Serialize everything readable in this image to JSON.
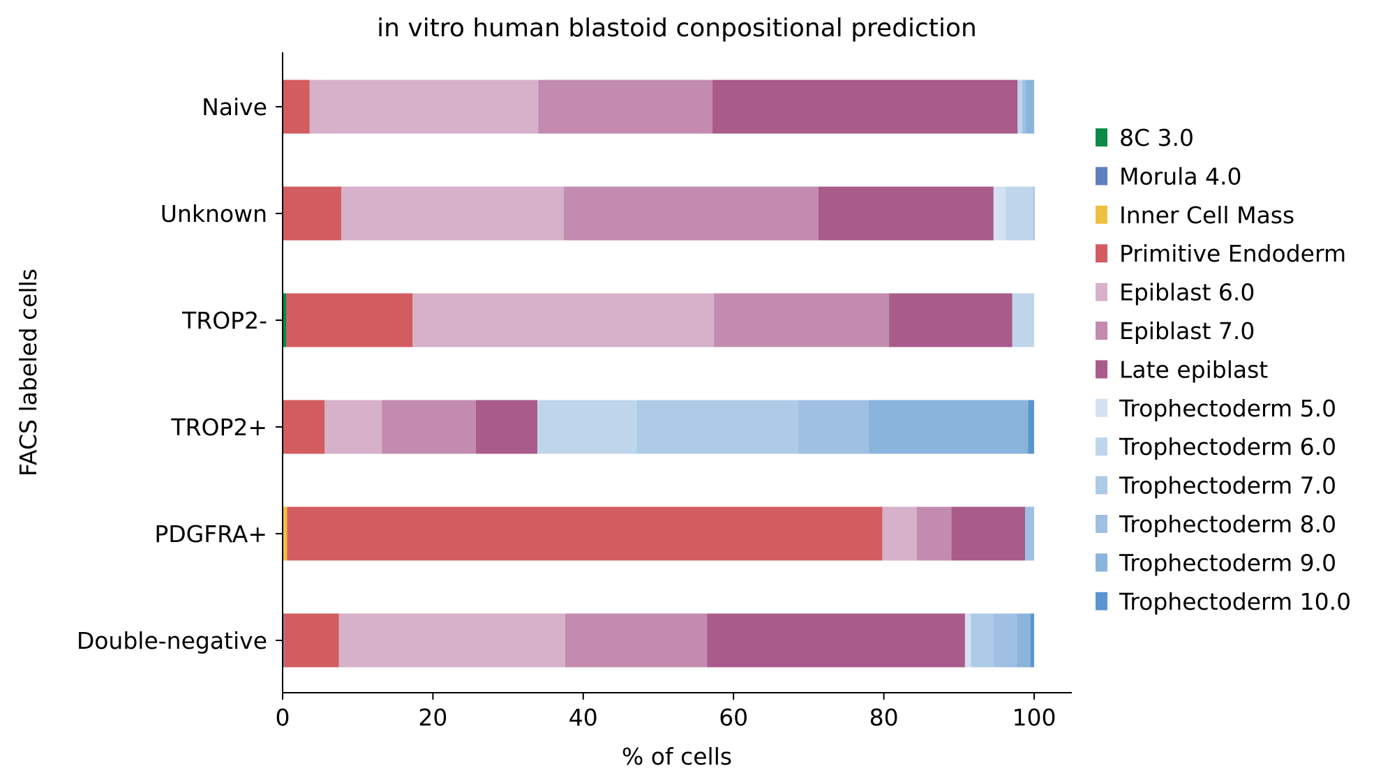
{
  "chart_data": {
    "type": "bar",
    "orientation": "horizontal",
    "stacked": true,
    "title": "in vitro human blastoid conpositional prediction",
    "xlabel": "% of cells",
    "ylabel": "FACS labeled cells",
    "xlim": [
      0,
      105
    ],
    "xticks": [
      "0",
      "20",
      "40",
      "60",
      "80",
      "100"
    ],
    "grid": false,
    "legend_position": "right",
    "categories": [
      "Naive",
      "Unknown",
      "TROP2-",
      "TROP2+",
      "PDGFRA+",
      "Double-negative"
    ],
    "series": [
      {
        "name": "8C 3.0",
        "color": "#0c8a47",
        "values": [
          0,
          0,
          0.5,
          0,
          0,
          0
        ]
      },
      {
        "name": "Morula 4.0",
        "color": "#5f7fbf",
        "values": [
          0,
          0,
          0,
          0,
          0,
          0.2
        ]
      },
      {
        "name": "Inner Cell Mass",
        "color": "#f0c040",
        "values": [
          0,
          0,
          0,
          0,
          0.6,
          0
        ]
      },
      {
        "name": "Primitive Endoderm",
        "color": "#d25c60",
        "values": [
          3.6,
          7.8,
          16.8,
          5.6,
          79.2,
          7.3
        ]
      },
      {
        "name": "Epiblast 6.0",
        "color": "#d6b1c9",
        "values": [
          30.4,
          29.6,
          40.1,
          7.6,
          4.6,
          30.1
        ]
      },
      {
        "name": "Epiblast 7.0",
        "color": "#c38baf",
        "values": [
          23.2,
          33.9,
          23.3,
          12.5,
          4.6,
          18.9
        ]
      },
      {
        "name": "Late epiblast",
        "color": "#a95b8a",
        "values": [
          40.6,
          23.3,
          16.4,
          8.2,
          9.8,
          34.3
        ]
      },
      {
        "name": "Trophectoderm 5.0",
        "color": "#d3e1f0",
        "values": [
          0,
          1.6,
          0,
          0,
          0,
          0.8
        ]
      },
      {
        "name": "Trophectoderm 6.0",
        "color": "#bfd5ec",
        "values": [
          0.6,
          3.6,
          2.9,
          13.2,
          0,
          0
        ]
      },
      {
        "name": "Trophectoderm 7.0",
        "color": "#adcbe7",
        "values": [
          0,
          0.3,
          0,
          21.5,
          0,
          3.0
        ]
      },
      {
        "name": "Trophectoderm 8.0",
        "color": "#9fc0e3",
        "values": [
          0.5,
          0,
          0,
          9.4,
          1.2,
          3.1
        ]
      },
      {
        "name": "Trophectoderm 9.0",
        "color": "#8ab4dc",
        "values": [
          1.1,
          0,
          0,
          21.2,
          0,
          1.8
        ]
      },
      {
        "name": "Trophectoderm 10.0",
        "color": "#5b95d0",
        "values": [
          0,
          0,
          0,
          0.8,
          0,
          0.5
        ]
      }
    ]
  }
}
